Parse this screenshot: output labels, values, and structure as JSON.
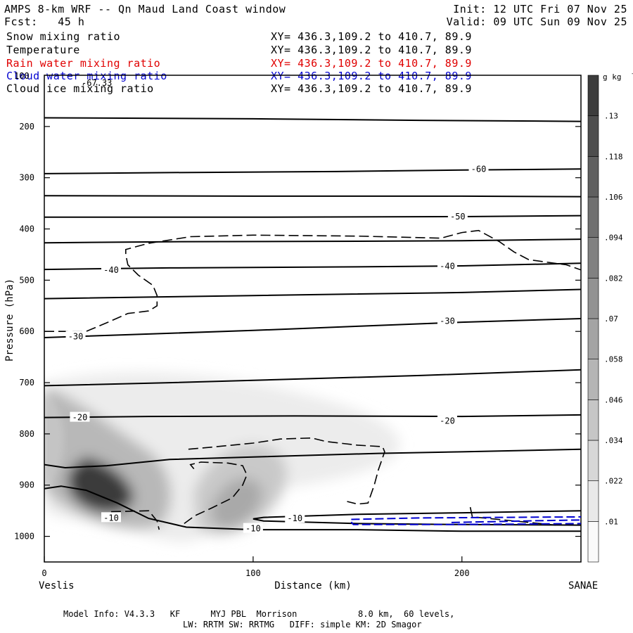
{
  "header": {
    "title": "AMPS 8-km WRF -- Qn Maud Land Coast window",
    "forecast": "Fcst:   45 h",
    "init": "Init: 12 UTC Fri 07 Nov 25",
    "valid": "Valid: 09 UTC Sun 09 Nov 25"
  },
  "fields": [
    {
      "name": "Snow mixing ratio",
      "xy": "XY= 436.3,109.2 to 410.7, 89.9",
      "color": "#000000"
    },
    {
      "name": "Temperature",
      "xy": "XY= 436.3,109.2 to 410.7, 89.9",
      "color": "#000000"
    },
    {
      "name": "Rain water mixing ratio",
      "xy": "XY= 436.3,109.2 to 410.7, 89.9",
      "color": "#e00000"
    },
    {
      "name": "Cloud water mixing ratio",
      "xy": "XY= 436.3,109.2 to 410.7, 89.9",
      "color": "#0000d0"
    },
    {
      "name": "Cloud ice mixing ratio",
      "xy": "XY= 436.3,109.2 to 410.7, 89.9",
      "color": "#000000"
    }
  ],
  "footer": {
    "line1": "Model Info: V4.3.3   KF      MYJ PBL  Morrison            8.0 km,  60 levels,",
    "line2": "LW: RRTM SW: RRTMG   DIFF: simple KM: 2D Smagor"
  },
  "chart_data": {
    "type": "contour",
    "title": "AMPS 8-km WRF -- Qn Maud Land Coast window",
    "xlabel": "Distance (km)",
    "ylabel": "Pressure (hPa)",
    "xlim": [
      0,
      257
    ],
    "ylim": [
      1050,
      100
    ],
    "x_ticks": [
      0,
      100,
      200
    ],
    "y_ticks": [
      200,
      300,
      400,
      500,
      600,
      700,
      800,
      900,
      1000
    ],
    "y_top_label": "100",
    "endpoint_left": "Veslis",
    "endpoint_right": "SANAE",
    "corner_label": "-67.33",
    "colorbar": {
      "units": "g kg",
      "units_exp": "-1",
      "levels": [
        ".01",
        ".022",
        ".034",
        ".046",
        ".058",
        ".07",
        ".082",
        ".094",
        ".106",
        ".118",
        ".13"
      ]
    },
    "temperature_contours": [
      {
        "pts": [
          [
            0,
            183
          ],
          [
            100,
            185
          ],
          [
            180,
            188
          ],
          [
            257,
            190
          ]
        ]
      },
      {
        "label": "-60",
        "label_at": [
          208,
          283
        ],
        "pts": [
          [
            0,
            292
          ],
          [
            60,
            290
          ],
          [
            140,
            288
          ],
          [
            200,
            285
          ],
          [
            257,
            283
          ]
        ]
      },
      {
        "pts": [
          [
            0,
            335
          ],
          [
            100,
            336
          ],
          [
            200,
            336
          ],
          [
            257,
            337
          ]
        ]
      },
      {
        "label": "-50",
        "label_at": [
          198,
          376
        ],
        "pts": [
          [
            0,
            377
          ],
          [
            100,
            377
          ],
          [
            200,
            376
          ],
          [
            257,
            374
          ]
        ]
      },
      {
        "pts": [
          [
            0,
            427
          ],
          [
            60,
            425
          ],
          [
            150,
            424
          ],
          [
            200,
            423
          ],
          [
            257,
            420
          ]
        ]
      },
      {
        "label": "-40",
        "label_at": [
          32,
          480
        ],
        "pts": [
          [
            0,
            479
          ],
          [
            60,
            476
          ],
          [
            150,
            474
          ],
          [
            200,
            472
          ],
          [
            257,
            467
          ]
        ]
      },
      {
        "label": "-40",
        "label_at": [
          193,
          473
        ],
        "pts": []
      },
      {
        "pts": [
          [
            0,
            536
          ],
          [
            100,
            530
          ],
          [
            200,
            524
          ],
          [
            257,
            518
          ]
        ]
      },
      {
        "label": "-30",
        "label_at": [
          193,
          580
        ],
        "pts": [
          [
            0,
            612
          ],
          [
            50,
            605
          ],
          [
            100,
            598
          ],
          [
            150,
            590
          ],
          [
            200,
            582
          ],
          [
            257,
            575
          ]
        ]
      },
      {
        "label": "-30",
        "label_at": [
          15,
          610
        ],
        "pts": []
      },
      {
        "pts": [
          [
            0,
            706
          ],
          [
            60,
            700
          ],
          [
            120,
            693
          ],
          [
            180,
            686
          ],
          [
            257,
            675
          ]
        ]
      },
      {
        "label": "-20",
        "label_at": [
          193,
          775
        ],
        "pts": [
          [
            0,
            768
          ],
          [
            50,
            766
          ],
          [
            120,
            765
          ],
          [
            200,
            766
          ],
          [
            257,
            763
          ]
        ]
      },
      {
        "label": "-20",
        "label_at": [
          17,
          768
        ],
        "pts": []
      },
      {
        "pts": [
          [
            0,
            860
          ],
          [
            10,
            866
          ],
          [
            30,
            862
          ],
          [
            60,
            850
          ],
          [
            100,
            845
          ],
          [
            160,
            838
          ],
          [
            200,
            835
          ],
          [
            257,
            830
          ]
        ]
      },
      {
        "label": "-10",
        "label_at": [
          120,
          965
        ],
        "pts": [
          [
            257,
            950
          ],
          [
            200,
            954
          ],
          [
            150,
            957
          ],
          [
            105,
            963
          ],
          [
            100,
            966
          ],
          [
            105,
            970
          ],
          [
            150,
            975
          ],
          [
            200,
            977
          ],
          [
            257,
            978
          ]
        ]
      },
      {
        "label": "-10",
        "label_at": [
          32,
          964
        ],
        "pts": [
          [
            0,
            907
          ],
          [
            8,
            902
          ],
          [
            20,
            910
          ],
          [
            35,
            935
          ],
          [
            50,
            965
          ],
          [
            68,
            982
          ],
          [
            100,
            987
          ],
          [
            150,
            987
          ],
          [
            200,
            990
          ],
          [
            257,
            990
          ]
        ]
      },
      {
        "label": "-10",
        "label_at": [
          100,
          985
        ],
        "pts": []
      }
    ],
    "cloud_ice_contours": [
      {
        "pts": [
          [
            0,
            600
          ],
          [
            20,
            600
          ],
          [
            30,
            583
          ],
          [
            40,
            565
          ],
          [
            50,
            560
          ],
          [
            54,
            550
          ],
          [
            54,
            530
          ],
          [
            52,
            510
          ],
          [
            45,
            490
          ],
          [
            40,
            470
          ],
          [
            39,
            450
          ],
          [
            39,
            440
          ],
          [
            50,
            428
          ],
          [
            70,
            415
          ],
          [
            100,
            412
          ],
          [
            150,
            414
          ],
          [
            190,
            418
          ],
          [
            200,
            407
          ],
          [
            208,
            403
          ],
          [
            218,
            425
          ],
          [
            225,
            445
          ],
          [
            232,
            460
          ],
          [
            250,
            470
          ],
          [
            257,
            480
          ]
        ]
      },
      {
        "pts": [
          [
            69,
            830
          ],
          [
            80,
            826
          ],
          [
            100,
            818
          ],
          [
            113,
            810
          ],
          [
            128,
            808
          ],
          [
            135,
            815
          ],
          [
            150,
            822
          ],
          [
            162,
            825
          ],
          [
            163,
            835
          ],
          [
            160,
            870
          ],
          [
            158,
            900
          ],
          [
            155,
            935
          ],
          [
            150,
            937
          ],
          [
            145,
            932
          ]
        ]
      },
      {
        "pts": [
          [
            67,
            975
          ],
          [
            72,
            960
          ],
          [
            80,
            945
          ],
          [
            90,
            925
          ],
          [
            95,
            900
          ],
          [
            97,
            880
          ],
          [
            95,
            862
          ],
          [
            88,
            857
          ],
          [
            75,
            855
          ],
          [
            70,
            860
          ],
          [
            72,
            870
          ]
        ]
      },
      {
        "pts": [
          [
            32,
            952
          ],
          [
            50,
            950
          ],
          [
            54,
            970
          ],
          [
            55,
            987
          ]
        ]
      },
      {
        "pts": [
          [
            204,
            943
          ],
          [
            205,
            962
          ],
          [
            215,
            966
          ],
          [
            230,
            972
          ],
          [
            245,
            978
          ]
        ]
      }
    ],
    "cloud_water_contours": [
      {
        "pts": [
          [
            147,
            967
          ],
          [
            180,
            964
          ],
          [
            220,
            963
          ],
          [
            257,
            962
          ]
        ]
      },
      {
        "pts": [
          [
            147,
            972
          ],
          [
            148,
            977
          ],
          [
            190,
            977
          ],
          [
            230,
            976
          ],
          [
            257,
            975
          ]
        ]
      },
      {
        "pts": [
          [
            195,
            973
          ],
          [
            230,
            970
          ],
          [
            257,
            968
          ]
        ]
      }
    ]
  }
}
